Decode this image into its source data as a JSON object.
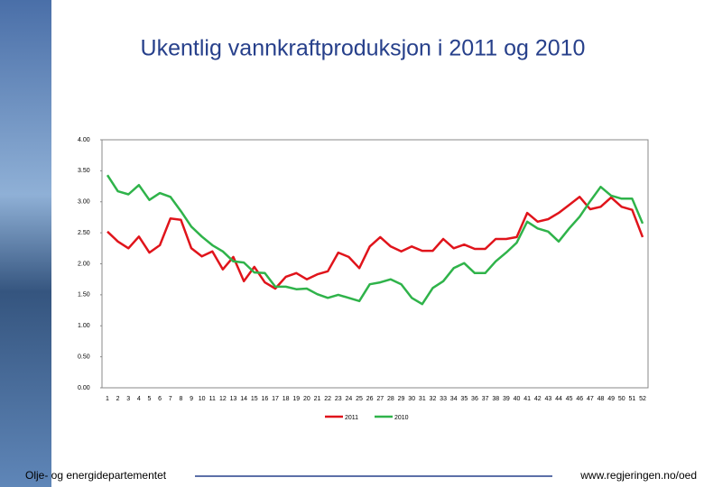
{
  "chart_data": {
    "type": "line",
    "title": "Ukentlig vannkraftproduksjon i 2011 og 2010",
    "categories": [
      "1",
      "2",
      "3",
      "4",
      "5",
      "6",
      "7",
      "8",
      "9",
      "10",
      "11",
      "12",
      "13",
      "14",
      "15",
      "16",
      "17",
      "18",
      "19",
      "20",
      "21",
      "22",
      "23",
      "24",
      "25",
      "26",
      "27",
      "28",
      "29",
      "30",
      "31",
      "32",
      "33",
      "34",
      "35",
      "36",
      "37",
      "38",
      "39",
      "40",
      "41",
      "42",
      "43",
      "44",
      "45",
      "46",
      "47",
      "48",
      "49",
      "50",
      "51",
      "52"
    ],
    "series": [
      {
        "name": "2011",
        "color": "#e0141b",
        "values": [
          2.52,
          2.36,
          2.25,
          2.44,
          2.18,
          2.3,
          2.73,
          2.71,
          2.25,
          2.12,
          2.2,
          1.91,
          2.11,
          1.72,
          1.95,
          1.7,
          1.6,
          1.79,
          1.85,
          1.75,
          1.83,
          1.88,
          2.18,
          2.11,
          1.93,
          2.28,
          2.43,
          2.28,
          2.2,
          2.28,
          2.21,
          2.21,
          2.4,
          2.25,
          2.31,
          2.24,
          2.24,
          2.4,
          2.4,
          2.43,
          2.82,
          2.68,
          2.72,
          2.82,
          2.95,
          3.08,
          2.88,
          2.92,
          3.07,
          2.92,
          2.87,
          2.43
        ]
      },
      {
        "name": "2010",
        "color": "#2fb34a",
        "values": [
          3.43,
          3.17,
          3.12,
          3.27,
          3.03,
          3.14,
          3.08,
          2.85,
          2.6,
          2.44,
          2.3,
          2.2,
          2.04,
          2.02,
          1.86,
          1.85,
          1.63,
          1.63,
          1.59,
          1.6,
          1.51,
          1.45,
          1.5,
          1.45,
          1.4,
          1.67,
          1.7,
          1.75,
          1.67,
          1.45,
          1.35,
          1.61,
          1.72,
          1.93,
          2.01,
          1.85,
          1.85,
          2.04,
          2.18,
          2.34,
          2.68,
          2.57,
          2.52,
          2.36,
          2.57,
          2.76,
          3.01,
          3.24,
          3.1,
          3.05,
          3.05,
          2.65
        ]
      }
    ],
    "ylim": [
      0,
      4
    ],
    "yticks": [
      {
        "value": 0,
        "label": "0.00"
      },
      {
        "value": 0.5,
        "label": "0.50"
      },
      {
        "value": 1,
        "label": "1.00"
      },
      {
        "value": 1.5,
        "label": "1.50"
      },
      {
        "value": 2,
        "label": "2.00"
      },
      {
        "value": 2.5,
        "label": "2.50"
      },
      {
        "value": 3,
        "label": "3.00"
      },
      {
        "value": 3.5,
        "label": "3.50"
      },
      {
        "value": 4,
        "label": "4.00"
      }
    ],
    "grid": false,
    "legend": "bottom"
  },
  "footer": {
    "left": "Olje- og energidepartementet",
    "right": "www.regjeringen.no/oed"
  }
}
